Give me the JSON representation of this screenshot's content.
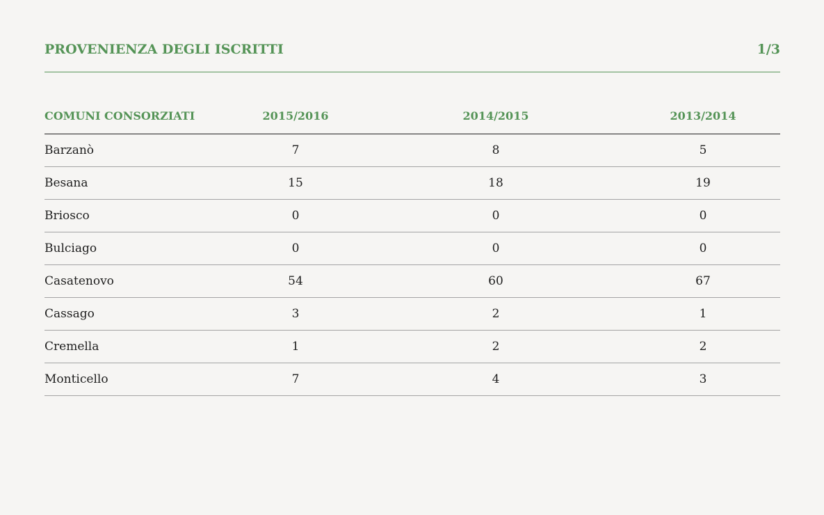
{
  "header": {
    "title": "PROVENIENZA DEGLI ISCRITTI",
    "page_indicator": "1/3"
  },
  "table": {
    "columns": [
      "COMUNI CONSORZIATI",
      "2015/2016",
      "2014/2015",
      "2013/2014"
    ],
    "rows": [
      {
        "name": "Barzanò",
        "v2015": "7",
        "v2014": "8",
        "v2013": "5"
      },
      {
        "name": "Besana",
        "v2015": "15",
        "v2014": "18",
        "v2013": "19"
      },
      {
        "name": "Briosco",
        "v2015": "0",
        "v2014": "0",
        "v2013": "0"
      },
      {
        "name": "Bulciago",
        "v2015": "0",
        "v2014": "0",
        "v2013": "0"
      },
      {
        "name": "Casatenovo",
        "v2015": "54",
        "v2014": "60",
        "v2013": "67"
      },
      {
        "name": "Cassago",
        "v2015": "3",
        "v2014": "2",
        "v2013": "1"
      },
      {
        "name": "Cremella",
        "v2015": "1",
        "v2014": "2",
        "v2013": "2"
      },
      {
        "name": "Monticello",
        "v2015": "7",
        "v2014": "4",
        "v2013": "3"
      }
    ]
  },
  "colors": {
    "accent": "#559457",
    "background": "#f6f5f3",
    "text": "#1e1e1e"
  }
}
